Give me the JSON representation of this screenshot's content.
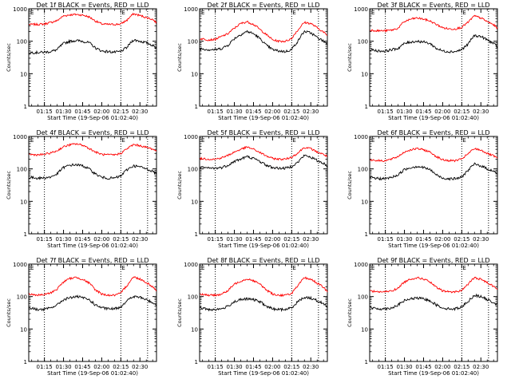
{
  "chart_data": {
    "type": "line",
    "layout": "3x3 grid of log-scale count-rate panels",
    "xlabel": "Start Time (19-Sep-06 01:02:40)",
    "ylabel": "Counts/sec",
    "x_tick_labels": [
      "01:15",
      "01:30",
      "01:45",
      "02:00",
      "02:15",
      "02:30"
    ],
    "x_tick_minutes": [
      75,
      90,
      105,
      120,
      135,
      150
    ],
    "xlim_minutes": [
      62.7,
      163
    ],
    "y_scale": "log",
    "ylim": [
      1,
      1000
    ],
    "y_tick_labels": [
      "1",
      "10",
      "100",
      "1000"
    ],
    "y_tick_values": [
      1,
      10,
      100,
      1000
    ],
    "vertical_markers_minutes": [
      75,
      135,
      156
    ],
    "marker_flag_label": "E",
    "marker_flag_minutes": [
      63,
      135
    ],
    "series_colors": {
      "events": "#000000",
      "lld": "#ff0000"
    },
    "x_minutes": [
      63,
      70,
      75,
      80,
      85,
      90,
      95,
      100,
      105,
      110,
      115,
      120,
      125,
      130,
      135,
      140,
      145,
      150,
      155,
      160,
      163
    ],
    "panels": [
      {
        "title": "Det 1f BLACK = Events, RED = LLD",
        "events": [
          45,
          45,
          46,
          48,
          55,
          85,
          100,
          105,
          100,
          90,
          62,
          50,
          48,
          46,
          48,
          65,
          110,
          100,
          90,
          75,
          60
        ],
        "lld": [
          330,
          330,
          340,
          380,
          430,
          600,
          650,
          670,
          640,
          560,
          420,
          340,
          330,
          330,
          340,
          450,
          700,
          620,
          540,
          470,
          370
        ]
      },
      {
        "title": "Det 2f BLACK = Events, RED = LLD",
        "events": [
          60,
          55,
          55,
          60,
          75,
          120,
          160,
          200,
          170,
          120,
          75,
          55,
          50,
          48,
          55,
          100,
          200,
          180,
          130,
          100,
          80
        ],
        "lld": [
          120,
          110,
          115,
          140,
          170,
          250,
          350,
          400,
          330,
          230,
          160,
          110,
          100,
          100,
          120,
          220,
          380,
          350,
          260,
          190,
          150
        ]
      },
      {
        "title": "Det 3f BLACK = Events, RED = LLD",
        "events": [
          55,
          50,
          50,
          55,
          60,
          85,
          95,
          100,
          95,
          85,
          60,
          50,
          48,
          48,
          55,
          80,
          150,
          140,
          110,
          85,
          65
        ],
        "lld": [
          220,
          210,
          210,
          220,
          250,
          400,
          480,
          520,
          480,
          420,
          330,
          260,
          240,
          240,
          270,
          380,
          600,
          520,
          400,
          320,
          250
        ]
      },
      {
        "title": "Det 4f BLACK = Events, RED = LLD",
        "events": [
          55,
          52,
          53,
          56,
          70,
          110,
          130,
          135,
          125,
          100,
          70,
          55,
          52,
          52,
          60,
          95,
          125,
          115,
          100,
          85,
          70
        ],
        "lld": [
          280,
          270,
          280,
          310,
          360,
          480,
          550,
          590,
          540,
          430,
          330,
          280,
          270,
          270,
          300,
          420,
          560,
          520,
          460,
          410,
          350
        ]
      },
      {
        "title": "Det 5f BLACK = Events, RED = LLD",
        "events": [
          110,
          105,
          105,
          110,
          130,
          170,
          200,
          240,
          210,
          170,
          130,
          110,
          105,
          105,
          120,
          160,
          260,
          230,
          180,
          150,
          120
        ],
        "lld": [
          210,
          200,
          200,
          220,
          260,
          330,
          400,
          470,
          400,
          320,
          250,
          210,
          200,
          200,
          230,
          310,
          460,
          420,
          330,
          280,
          240
        ]
      },
      {
        "title": "Det 6f BLACK = Events, RED = LLD",
        "events": [
          55,
          50,
          50,
          55,
          65,
          95,
          110,
          120,
          110,
          95,
          65,
          52,
          50,
          50,
          55,
          90,
          140,
          125,
          100,
          85,
          70
        ],
        "lld": [
          190,
          180,
          180,
          200,
          240,
          330,
          390,
          420,
          390,
          330,
          240,
          190,
          180,
          180,
          200,
          290,
          420,
          380,
          300,
          250,
          210
        ]
      },
      {
        "title": "Det 7f BLACK = Events, RED = LLD",
        "events": [
          45,
          40,
          40,
          45,
          55,
          80,
          92,
          100,
          92,
          80,
          55,
          45,
          42,
          42,
          48,
          75,
          100,
          95,
          80,
          65,
          55
        ],
        "lld": [
          120,
          110,
          115,
          130,
          170,
          280,
          360,
          390,
          340,
          260,
          160,
          120,
          110,
          110,
          125,
          220,
          400,
          350,
          270,
          200,
          150
        ]
      },
      {
        "title": "Det 8f BLACK = Events, RED = LLD",
        "events": [
          45,
          40,
          40,
          42,
          50,
          70,
          80,
          85,
          80,
          70,
          50,
          42,
          40,
          40,
          45,
          70,
          95,
          90,
          75,
          60,
          50
        ],
        "lld": [
          120,
          110,
          110,
          120,
          150,
          240,
          300,
          350,
          310,
          240,
          160,
          120,
          110,
          110,
          125,
          210,
          380,
          340,
          260,
          190,
          140
        ]
      },
      {
        "title": "Det 9f BLACK = Events, RED = LLD",
        "events": [
          45,
          42,
          42,
          45,
          55,
          75,
          85,
          90,
          85,
          75,
          55,
          45,
          42,
          42,
          48,
          70,
          110,
          100,
          80,
          65,
          55
        ],
        "lld": [
          150,
          140,
          140,
          150,
          180,
          280,
          350,
          380,
          350,
          280,
          190,
          150,
          140,
          140,
          155,
          240,
          380,
          340,
          270,
          210,
          170
        ]
      }
    ]
  }
}
